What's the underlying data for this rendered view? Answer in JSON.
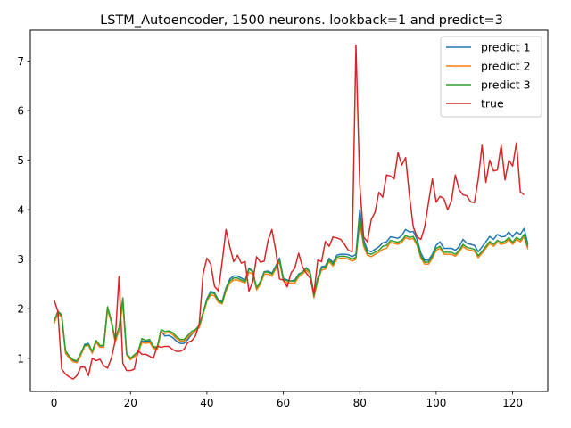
{
  "chart_data": {
    "type": "line",
    "title": "LSTM_Autoencoder, 1500 neurons. lookback=1 and predict=3",
    "xlabel": "",
    "ylabel": "",
    "xlim": [
      -6.2,
      129.2
    ],
    "ylim": [
      0.33,
      7.62
    ],
    "xticks": [
      0,
      20,
      40,
      60,
      80,
      100,
      120
    ],
    "yticks": [
      1,
      2,
      3,
      4,
      5,
      6,
      7
    ],
    "grid": false,
    "legend_position": "top-right",
    "series": [
      {
        "name": "predict 1",
        "color": "#1f77b4",
        "values": [
          1.72,
          1.92,
          1.85,
          1.12,
          1.02,
          0.95,
          0.93,
          1.08,
          1.28,
          1.3,
          1.12,
          1.35,
          1.25,
          1.25,
          2.02,
          1.75,
          1.35,
          1.6,
          2.15,
          1.08,
          0.98,
          1.05,
          1.12,
          1.35,
          1.34,
          1.35,
          1.22,
          1.2,
          1.55,
          1.45,
          1.46,
          1.42,
          1.35,
          1.3,
          1.3,
          1.38,
          1.48,
          1.55,
          1.65,
          1.92,
          2.2,
          2.35,
          2.32,
          2.18,
          2.15,
          2.42,
          2.6,
          2.66,
          2.66,
          2.62,
          2.58,
          2.82,
          2.76,
          2.42,
          2.55,
          2.75,
          2.76,
          2.72,
          2.86,
          3.02,
          2.62,
          2.58,
          2.56,
          2.58,
          2.7,
          2.74,
          2.83,
          2.75,
          2.28,
          2.62,
          2.85,
          2.86,
          3.02,
          2.93,
          3.08,
          3.1,
          3.1,
          3.09,
          3.05,
          3.1,
          4.0,
          3.4,
          3.18,
          3.15,
          3.2,
          3.25,
          3.33,
          3.35,
          3.45,
          3.44,
          3.42,
          3.48,
          3.6,
          3.55,
          3.56,
          3.4,
          3.12,
          2.98,
          2.98,
          3.1,
          3.28,
          3.35,
          3.22,
          3.22,
          3.22,
          3.18,
          3.25,
          3.4,
          3.32,
          3.3,
          3.28,
          3.15,
          3.25,
          3.35,
          3.46,
          3.4,
          3.5,
          3.45,
          3.46,
          3.55,
          3.45,
          3.55,
          3.5,
          3.62,
          3.3
        ]
      },
      {
        "name": "predict 2",
        "color": "#ff7f0e",
        "values": [
          1.7,
          1.9,
          1.83,
          1.1,
          1.0,
          0.93,
          0.91,
          1.06,
          1.24,
          1.26,
          1.1,
          1.32,
          1.22,
          1.22,
          1.98,
          1.72,
          1.32,
          1.56,
          2.1,
          1.06,
          0.97,
          1.03,
          1.1,
          1.32,
          1.3,
          1.32,
          1.2,
          1.18,
          1.52,
          1.5,
          1.52,
          1.48,
          1.4,
          1.35,
          1.35,
          1.42,
          1.5,
          1.55,
          1.62,
          1.88,
          2.15,
          2.28,
          2.26,
          2.13,
          2.1,
          2.36,
          2.52,
          2.58,
          2.58,
          2.55,
          2.52,
          2.74,
          2.7,
          2.38,
          2.5,
          2.7,
          2.7,
          2.66,
          2.8,
          2.95,
          2.56,
          2.52,
          2.52,
          2.52,
          2.64,
          2.7,
          2.78,
          2.7,
          2.22,
          2.56,
          2.78,
          2.8,
          2.95,
          2.86,
          3.0,
          3.02,
          3.02,
          3.0,
          2.96,
          3.0,
          3.75,
          3.26,
          3.08,
          3.05,
          3.1,
          3.14,
          3.2,
          3.22,
          3.34,
          3.32,
          3.3,
          3.34,
          3.44,
          3.4,
          3.42,
          3.28,
          3.02,
          2.9,
          2.9,
          3.02,
          3.18,
          3.22,
          3.1,
          3.1,
          3.1,
          3.06,
          3.14,
          3.26,
          3.2,
          3.18,
          3.16,
          3.03,
          3.12,
          3.22,
          3.32,
          3.26,
          3.34,
          3.3,
          3.32,
          3.4,
          3.3,
          3.4,
          3.35,
          3.45,
          3.2
        ]
      },
      {
        "name": "predict 3",
        "color": "#2ca02c",
        "values": [
          1.75,
          1.95,
          1.88,
          1.15,
          1.04,
          0.97,
          0.95,
          1.1,
          1.26,
          1.28,
          1.14,
          1.36,
          1.26,
          1.26,
          2.04,
          1.76,
          1.38,
          1.62,
          2.22,
          1.1,
          1.0,
          1.07,
          1.14,
          1.4,
          1.36,
          1.38,
          1.24,
          1.22,
          1.58,
          1.54,
          1.55,
          1.52,
          1.44,
          1.38,
          1.38,
          1.46,
          1.54,
          1.58,
          1.66,
          1.92,
          2.18,
          2.32,
          2.3,
          2.16,
          2.12,
          2.4,
          2.56,
          2.62,
          2.62,
          2.58,
          2.55,
          2.8,
          2.75,
          2.42,
          2.54,
          2.74,
          2.74,
          2.7,
          2.84,
          2.98,
          2.6,
          2.56,
          2.56,
          2.56,
          2.68,
          2.74,
          2.82,
          2.74,
          2.26,
          2.6,
          2.82,
          2.84,
          2.98,
          2.9,
          3.04,
          3.06,
          3.06,
          3.04,
          3.0,
          3.04,
          3.82,
          3.32,
          3.12,
          3.1,
          3.14,
          3.18,
          3.26,
          3.28,
          3.38,
          3.36,
          3.34,
          3.38,
          3.48,
          3.44,
          3.46,
          3.32,
          3.06,
          2.94,
          2.94,
          3.06,
          3.22,
          3.26,
          3.14,
          3.14,
          3.14,
          3.1,
          3.18,
          3.3,
          3.24,
          3.22,
          3.2,
          3.07,
          3.16,
          3.26,
          3.36,
          3.3,
          3.38,
          3.34,
          3.36,
          3.44,
          3.34,
          3.44,
          3.39,
          3.5,
          3.25
        ]
      },
      {
        "name": "true",
        "color": "#d62728",
        "values": [
          2.18,
          1.95,
          0.78,
          0.68,
          0.62,
          0.58,
          0.65,
          0.82,
          0.82,
          0.65,
          1.0,
          0.95,
          0.98,
          0.85,
          0.8,
          1.0,
          1.35,
          2.65,
          0.9,
          0.75,
          0.75,
          0.78,
          1.15,
          1.08,
          1.08,
          1.04,
          1.0,
          1.25,
          1.22,
          1.24,
          1.24,
          1.18,
          1.14,
          1.14,
          1.18,
          1.32,
          1.35,
          1.45,
          1.7,
          2.7,
          3.02,
          2.9,
          2.45,
          2.36,
          2.95,
          3.6,
          3.25,
          2.95,
          3.08,
          2.92,
          2.95,
          2.35,
          2.55,
          3.05,
          2.94,
          2.96,
          3.38,
          3.6,
          3.18,
          2.6,
          2.58,
          2.44,
          2.72,
          2.82,
          3.12,
          2.85,
          2.72,
          2.62,
          2.3,
          2.98,
          2.95,
          3.36,
          3.26,
          3.45,
          3.43,
          3.4,
          3.3,
          3.18,
          3.15,
          7.32,
          4.5,
          3.45,
          3.35,
          3.8,
          3.95,
          4.35,
          4.25,
          4.7,
          4.68,
          4.62,
          5.15,
          4.9,
          5.05,
          4.28,
          3.65,
          3.45,
          3.4,
          3.65,
          4.15,
          4.62,
          4.15,
          4.27,
          4.22,
          4.0,
          4.18,
          4.7,
          4.4,
          4.3,
          4.28,
          4.16,
          4.14,
          4.62,
          5.3,
          4.55,
          5.0,
          4.78,
          4.8,
          5.3,
          4.6,
          5.0,
          4.88,
          5.35,
          4.36,
          4.3
        ]
      }
    ]
  }
}
